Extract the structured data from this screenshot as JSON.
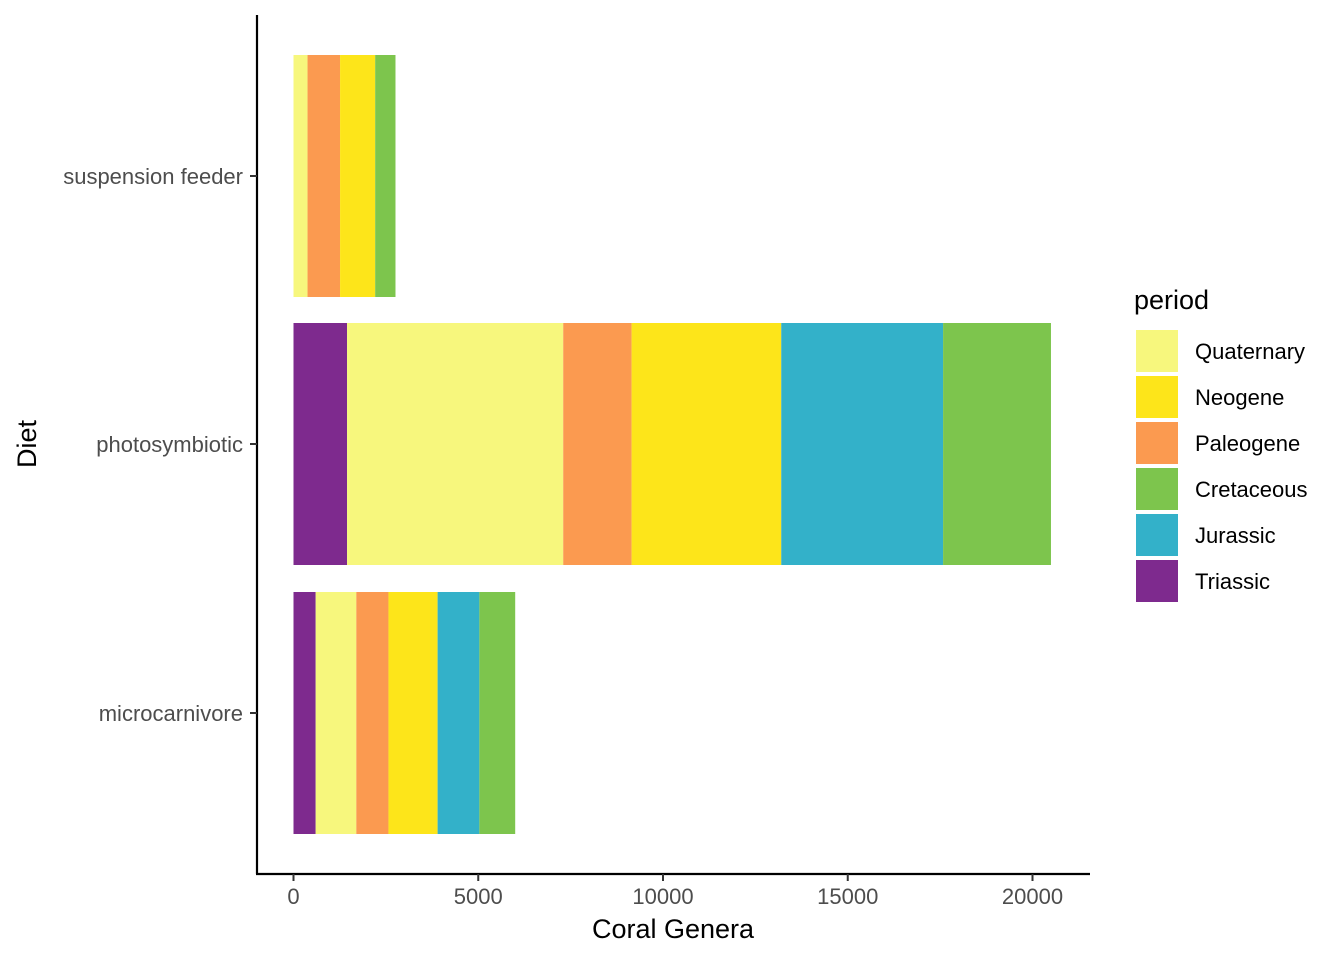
{
  "chart_data": {
    "type": "bar",
    "orientation": "horizontal",
    "stacked": true,
    "xlabel": "Coral Genera",
    "ylabel": "Diet",
    "xlim": [
      -1000,
      21500
    ],
    "xticks": [
      0,
      5000,
      10000,
      15000,
      20000
    ],
    "categories": [
      "suspension feeder",
      "photosymbiotic",
      "microcarnivore"
    ],
    "legend": {
      "title": "period",
      "position": "right"
    },
    "grid": false,
    "series": [
      {
        "name": "Triassic",
        "color": "#7E2A8E",
        "values": [
          0,
          1450,
          600
        ]
      },
      {
        "name": "Quaternary",
        "color": "#F7F77D",
        "values": [
          380,
          5850,
          1100
        ]
      },
      {
        "name": "Paleogene",
        "color": "#FB9A50",
        "values": [
          880,
          1850,
          870
        ]
      },
      {
        "name": "Neogene",
        "color": "#FDE51A",
        "values": [
          950,
          4050,
          1330
        ]
      },
      {
        "name": "Jurassic",
        "color": "#33B1C9",
        "values": [
          0,
          4380,
          1130
        ]
      },
      {
        "name": "Cretaceous",
        "color": "#7DC54D",
        "values": [
          550,
          2920,
          970
        ]
      }
    ],
    "legend_order": [
      "Quaternary",
      "Neogene",
      "Paleogene",
      "Cretaceous",
      "Jurassic",
      "Triassic"
    ]
  }
}
